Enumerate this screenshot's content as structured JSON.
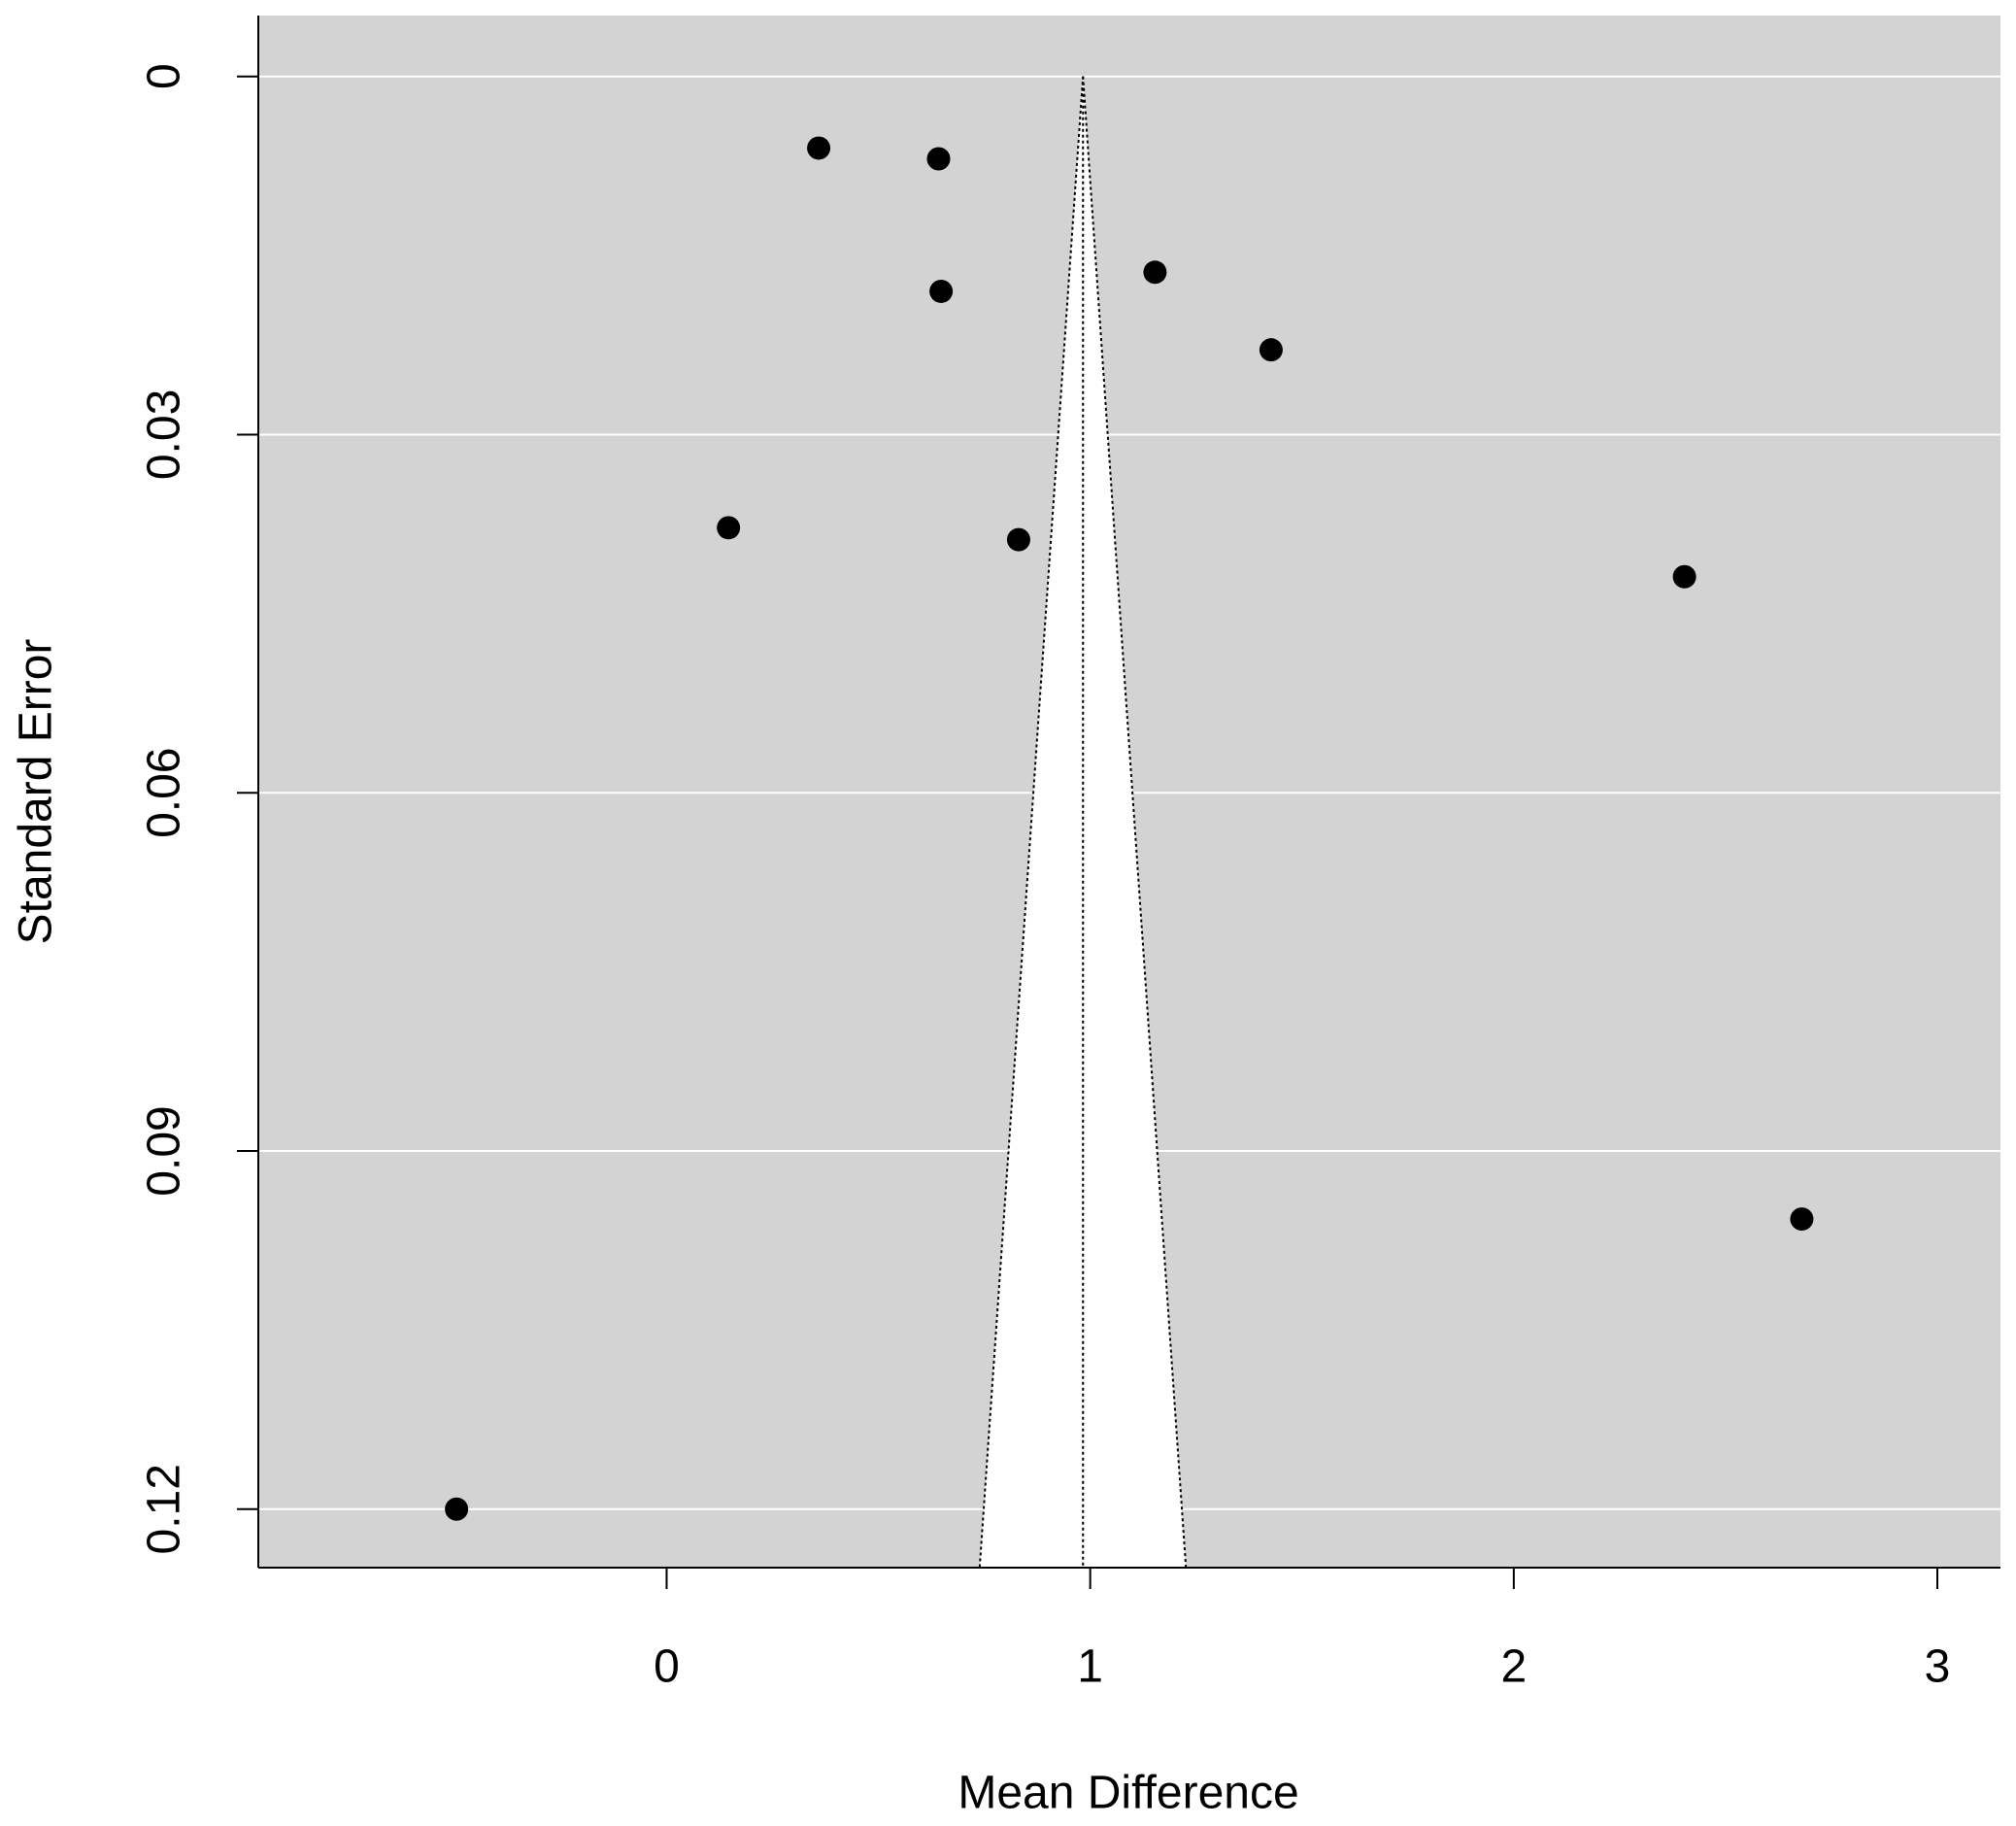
{
  "chart_data": {
    "type": "scatter",
    "x_label": "Mean Difference",
    "y_label": "Standard Error",
    "x": [
      0.359,
      0.642,
      0.648,
      1.153,
      1.427,
      0.146,
      0.831,
      2.403,
      2.68,
      -0.496
    ],
    "values": [
      0.006,
      0.0069,
      0.018,
      0.0164,
      0.0229,
      0.0378,
      0.0388,
      0.0419,
      0.0957,
      0.12
    ],
    "color": "#000000",
    "xlim": [
      -0.964,
      3.149
    ],
    "ylim": [
      0.1249,
      -0.0051
    ],
    "xticks": [
      0,
      1,
      2,
      3
    ],
    "yticks": [
      0,
      0.03,
      0.06,
      0.09,
      0.12
    ],
    "grid": true,
    "funnel": {
      "center": 0.983,
      "limits": [
        0.739,
        1.226
      ]
    }
  }
}
